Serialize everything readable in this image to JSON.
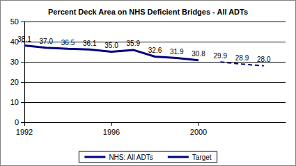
{
  "chart_data": {
    "type": "line",
    "title": "Percent Deck Area on NHS Deficient Bridges - All ADTs",
    "x": [
      1992,
      1993,
      1994,
      1995,
      1996,
      1997,
      1998,
      1999,
      2000,
      2001,
      2002,
      2003
    ],
    "series": [
      {
        "name": "NHS: All ADTs",
        "color": "#000080",
        "line_style": "solid",
        "marker": "none",
        "values": [
          38.1,
          37.0,
          36.5,
          36.1,
          35.0,
          35.9,
          32.6,
          31.9,
          30.8,
          null,
          null,
          null
        ],
        "value_labels": [
          "38.1",
          "37.0",
          "36.5",
          "36.1",
          "35.0",
          "35.9",
          "32.6",
          "31.9",
          "30.8",
          null,
          null,
          null
        ]
      },
      {
        "name": "Target",
        "color": "#000080",
        "line_style": "dashed",
        "marker": "none",
        "values": [
          null,
          null,
          null,
          null,
          null,
          null,
          null,
          null,
          null,
          29.9,
          28.9,
          28.0
        ],
        "value_labels": [
          null,
          null,
          null,
          null,
          null,
          null,
          null,
          null,
          null,
          "29.9",
          "28.9",
          "28.0"
        ]
      }
    ],
    "xlim": [
      1992,
      2004
    ],
    "xticks": [
      1992,
      1996,
      2000
    ],
    "ylim": [
      0,
      50
    ],
    "yticks": [
      0,
      10,
      20,
      30,
      40,
      50
    ],
    "grid": true,
    "legend": "bottom",
    "data_labels": true
  }
}
